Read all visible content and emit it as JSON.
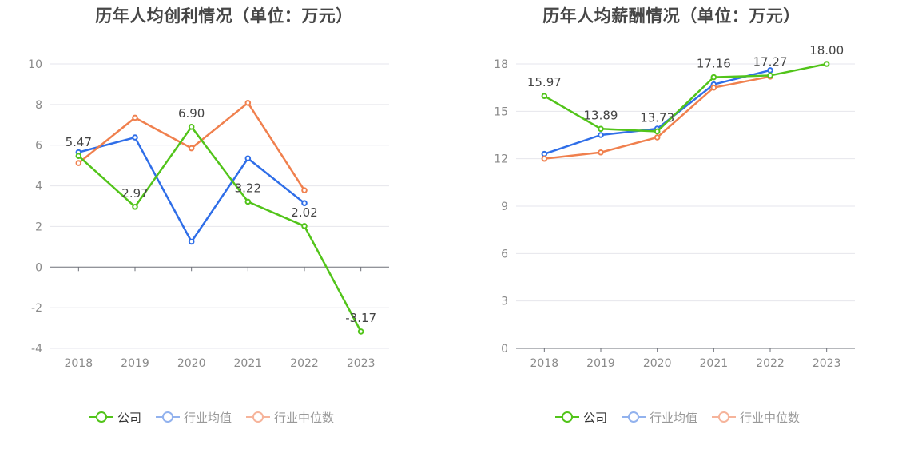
{
  "charts": [
    {
      "title": "历年人均创利情况（单位：万元）",
      "legend": [
        "公司",
        "行业均值",
        "行业中位数"
      ]
    },
    {
      "title": "历年人均薪酬情况（单位：万元）",
      "legend": [
        "公司",
        "行业均值",
        "行业中位数"
      ]
    }
  ],
  "colors": {
    "company": "#52c41a",
    "industry_avg": "#2f6ee8",
    "industry_median": "#f0804e",
    "legend_avg_faded": "#92b2ee",
    "legend_median_faded": "#f6b49b",
    "grid": "#e6e6ec",
    "axis": "#6e7079",
    "tick_text": "#8a8a8a",
    "label_text": "#444444"
  },
  "chart_data": [
    {
      "type": "line",
      "title": "历年人均创利情况（单位：万元）",
      "categories": [
        "2018",
        "2019",
        "2020",
        "2021",
        "2022",
        "2023"
      ],
      "ylim": [
        -4,
        10
      ],
      "yticks": [
        "-4",
        "-2",
        "0",
        "2",
        "4",
        "6",
        "8",
        "10"
      ],
      "legend_position": "bottom",
      "grid": true,
      "series": [
        {
          "name": "公司",
          "values": [
            5.47,
            2.97,
            6.9,
            3.22,
            2.02,
            -3.17
          ],
          "labels": [
            "5.47",
            "2.97",
            "6.90",
            "3.22",
            "2.02",
            "-3.17"
          ]
        },
        {
          "name": "行业均值",
          "values": [
            5.65,
            6.38,
            1.25,
            5.35,
            3.15,
            null
          ]
        },
        {
          "name": "行业中位数",
          "values": [
            5.12,
            7.35,
            5.85,
            8.08,
            3.78,
            null
          ]
        }
      ]
    },
    {
      "type": "line",
      "title": "历年人均薪酬情况（单位：万元）",
      "categories": [
        "2018",
        "2019",
        "2020",
        "2021",
        "2022",
        "2023"
      ],
      "ylim": [
        0,
        18
      ],
      "yticks": [
        "0",
        "3",
        "6",
        "9",
        "12",
        "15",
        "18"
      ],
      "legend_position": "bottom",
      "grid": true,
      "series": [
        {
          "name": "公司",
          "values": [
            15.97,
            13.89,
            13.73,
            17.16,
            17.27,
            18.0
          ],
          "labels": [
            "15.97",
            "13.89",
            "13.73",
            "17.16",
            "17.27",
            "18.00"
          ]
        },
        {
          "name": "行业均值",
          "values": [
            12.3,
            13.5,
            13.9,
            16.7,
            17.6,
            null
          ]
        },
        {
          "name": "行业中位数",
          "values": [
            12.0,
            12.4,
            13.35,
            16.5,
            17.2,
            null
          ]
        }
      ]
    }
  ]
}
